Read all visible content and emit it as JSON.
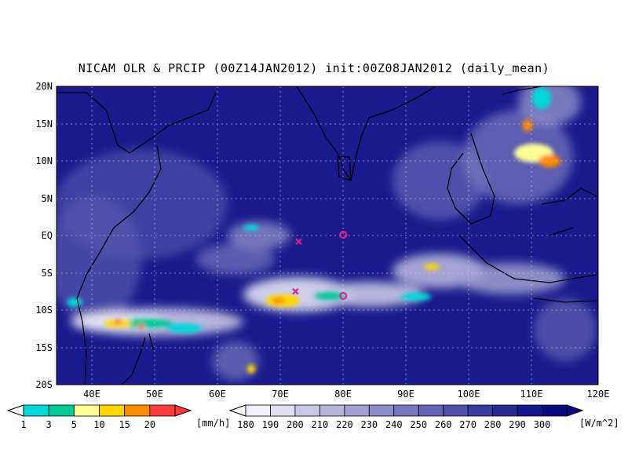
{
  "title": "NICAM OLR & PRCIP (00Z14JAN2012) init:00Z08JAN2012 (daily_mean)",
  "lat_labels": [
    "20N",
    "15N",
    "10N",
    "5N",
    "EQ",
    "5S",
    "10S",
    "15S",
    "20S"
  ],
  "lon_labels": [
    "40E",
    "50E",
    "60E",
    "70E",
    "80E",
    "90E",
    "100E",
    "110E",
    "120E"
  ],
  "precip_colorbar": {
    "unit": "[mm/h]",
    "ticks": [
      "1",
      "3",
      "5",
      "10",
      "15",
      "20"
    ],
    "colors": [
      "#00d8d8",
      "#00c896",
      "#ffff96",
      "#ffd700",
      "#ff8c00",
      "#ff3c3c"
    ]
  },
  "olr_colorbar": {
    "unit": "[W/m^2]",
    "ticks": [
      "180",
      "190",
      "200",
      "210",
      "220",
      "230",
      "240",
      "250",
      "260",
      "270",
      "280",
      "290",
      "300"
    ],
    "colors": [
      "#f0f0f8",
      "#e0e0f0",
      "#c8c8e6",
      "#b4b4dc",
      "#a0a0d2",
      "#8c8cc8",
      "#7878be",
      "#6464b4",
      "#5050aa",
      "#3c3ca0",
      "#282896",
      "#14148c",
      "#0a0a80"
    ]
  },
  "markers": [
    {
      "symbol": "x",
      "lon": 73,
      "lat": -0.8,
      "color": "#e0208c"
    },
    {
      "symbol": "x",
      "lon": 72.5,
      "lat": -7.5,
      "color": "#e0208c"
    },
    {
      "symbol": "o",
      "lon": 80,
      "lat": 0.1,
      "color": "#e0208c"
    },
    {
      "symbol": "o",
      "lon": 80,
      "lat": -8.1,
      "color": "#e0208c"
    }
  ],
  "colors": {
    "ocean": "#1a1a8c",
    "background": "#ffffff"
  }
}
